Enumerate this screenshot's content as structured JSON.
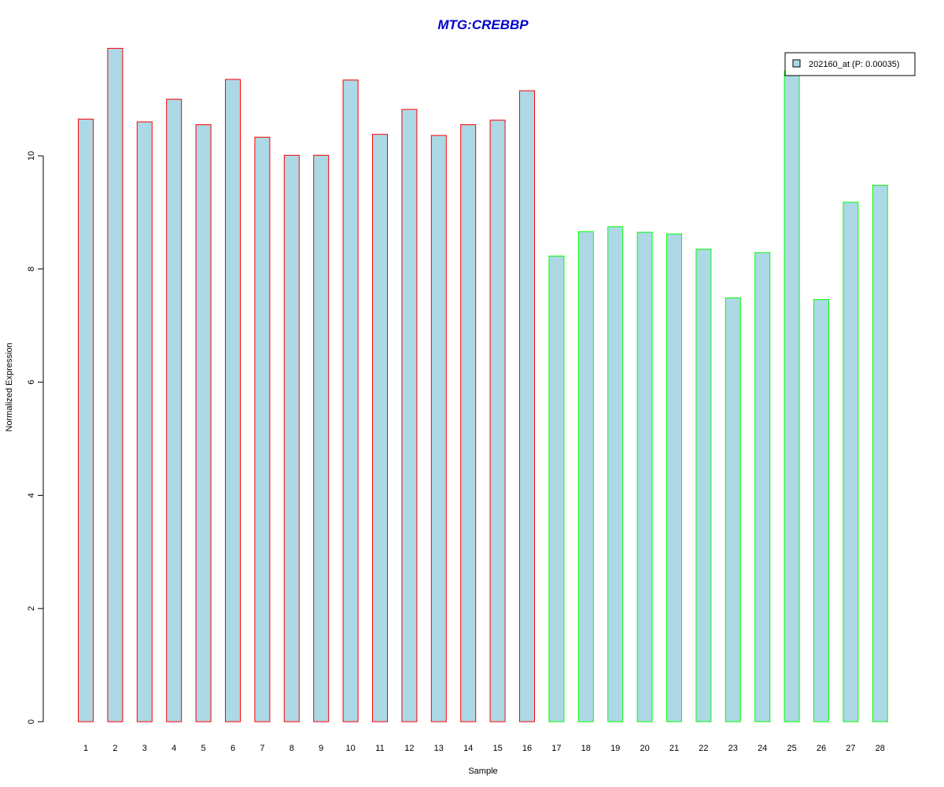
{
  "chart_data": {
    "type": "bar",
    "title": "MTG:CREBBP",
    "xlabel": "Sample",
    "ylabel": "Normalized Expression",
    "categories": [
      "1",
      "2",
      "3",
      "4",
      "5",
      "6",
      "7",
      "8",
      "9",
      "10",
      "11",
      "12",
      "13",
      "14",
      "15",
      "16",
      "17",
      "18",
      "19",
      "20",
      "21",
      "22",
      "23",
      "24",
      "25",
      "26",
      "27",
      "28"
    ],
    "values": [
      10.65,
      11.9,
      10.6,
      11.0,
      10.55,
      11.35,
      10.33,
      10.01,
      10.01,
      11.34,
      10.38,
      10.82,
      10.36,
      10.55,
      10.63,
      11.15,
      8.23,
      8.66,
      8.75,
      8.65,
      8.62,
      8.35,
      7.49,
      8.29,
      11.5,
      7.46,
      9.18,
      9.48
    ],
    "ylim": [
      0,
      12
    ],
    "yticks": [
      0,
      2,
      4,
      6,
      8,
      10
    ],
    "legend": {
      "placement": "top-right",
      "entries": [
        "202160_at (P: 0.00035)"
      ]
    },
    "grid": false
  },
  "colors": {
    "title": "#0000CD",
    "bar_fill": "#ADD8E6",
    "group1_border": "#FF0000",
    "group2_border": "#00FF00",
    "axis": "#000000"
  },
  "groups": {
    "group1_count": 16
  }
}
